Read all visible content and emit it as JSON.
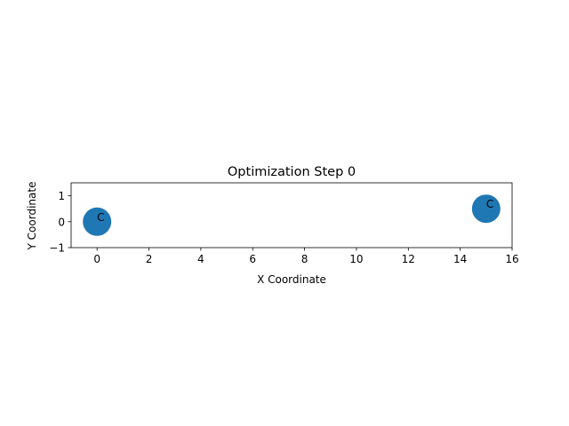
{
  "chart_data": {
    "type": "scatter",
    "title": "Optimization Step 0",
    "xlabel": "X Coordinate",
    "ylabel": "Y Coordinate",
    "xlim": [
      -1,
      16
    ],
    "ylim": [
      -1,
      1.5
    ],
    "xticks": [
      0,
      2,
      4,
      6,
      8,
      10,
      12,
      14,
      16
    ],
    "yticks": [
      -1,
      0,
      1
    ],
    "grid": false,
    "marker_color": "#1f77b4",
    "points": [
      {
        "x": 0,
        "y": 0,
        "label": "C"
      },
      {
        "x": 15,
        "y": 0.5,
        "label": "C"
      }
    ]
  }
}
